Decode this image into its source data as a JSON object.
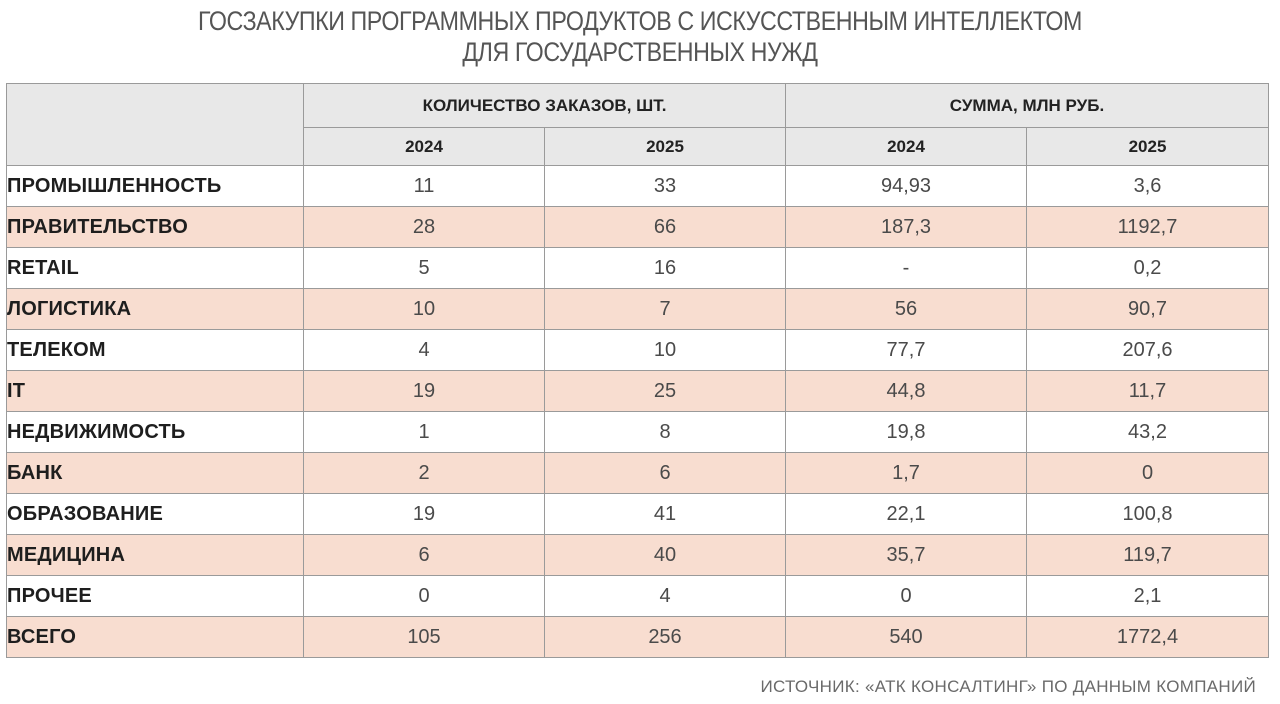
{
  "chart_data": {
    "type": "table",
    "title": "ГОСЗАКУПКИ ПРОГРАММНЫХ ПРОДУКТОВ С ИСКУССТВЕННЫМ ИНТЕЛЛЕКТОМ",
    "subtitle": "ДЛЯ ГОСУДАРСТВЕННЫХ НУЖД",
    "column_groups": [
      {
        "label": "КОЛИЧЕСТВО ЗАКАЗОВ, ШТ.",
        "columns": [
          "2024",
          "2025"
        ]
      },
      {
        "label": "СУММА, МЛН РУБ.",
        "columns": [
          "2024",
          "2025"
        ]
      }
    ],
    "rows": [
      {
        "label": "ПРОМЫШЛЕННОСТЬ",
        "values": [
          "11",
          "33",
          "94,93",
          "3,6"
        ]
      },
      {
        "label": "ПРАВИТЕЛЬСТВО",
        "values": [
          "28",
          "66",
          "187,3",
          "1192,7"
        ]
      },
      {
        "label": "RETAIL",
        "values": [
          "5",
          "16",
          "-",
          "0,2"
        ]
      },
      {
        "label": "ЛОГИСТИКА",
        "values": [
          "10",
          "7",
          "56",
          "90,7"
        ]
      },
      {
        "label": "ТЕЛЕКОМ",
        "values": [
          "4",
          "10",
          "77,7",
          "207,6"
        ]
      },
      {
        "label": "IT",
        "values": [
          "19",
          "25",
          "44,8",
          "11,7"
        ]
      },
      {
        "label": "НЕДВИЖИМОСТЬ",
        "values": [
          "1",
          "8",
          "19,8",
          "43,2"
        ]
      },
      {
        "label": "БАНК",
        "values": [
          "2",
          "6",
          "1,7",
          "0"
        ]
      },
      {
        "label": "ОБРАЗОВАНИЕ",
        "values": [
          "19",
          "41",
          "22,1",
          "100,8"
        ]
      },
      {
        "label": "МЕДИЦИНА",
        "values": [
          "6",
          "40",
          "35,7",
          "119,7"
        ]
      },
      {
        "label": "ПРОЧЕЕ",
        "values": [
          "0",
          "4",
          "0",
          "2,1"
        ]
      },
      {
        "label": "ВСЕГО",
        "values": [
          "105",
          "256",
          "540",
          "1772,4"
        ]
      }
    ]
  },
  "source": "ИСТОЧНИК: «АТК КОНСАЛТИНГ» ПО ДАННЫМ КОМПАНИЙ",
  "colors": {
    "header_bg": "#e8e8e8",
    "shaded_row_bg": "#f8ddd0",
    "border": "#9a9a9a"
  }
}
